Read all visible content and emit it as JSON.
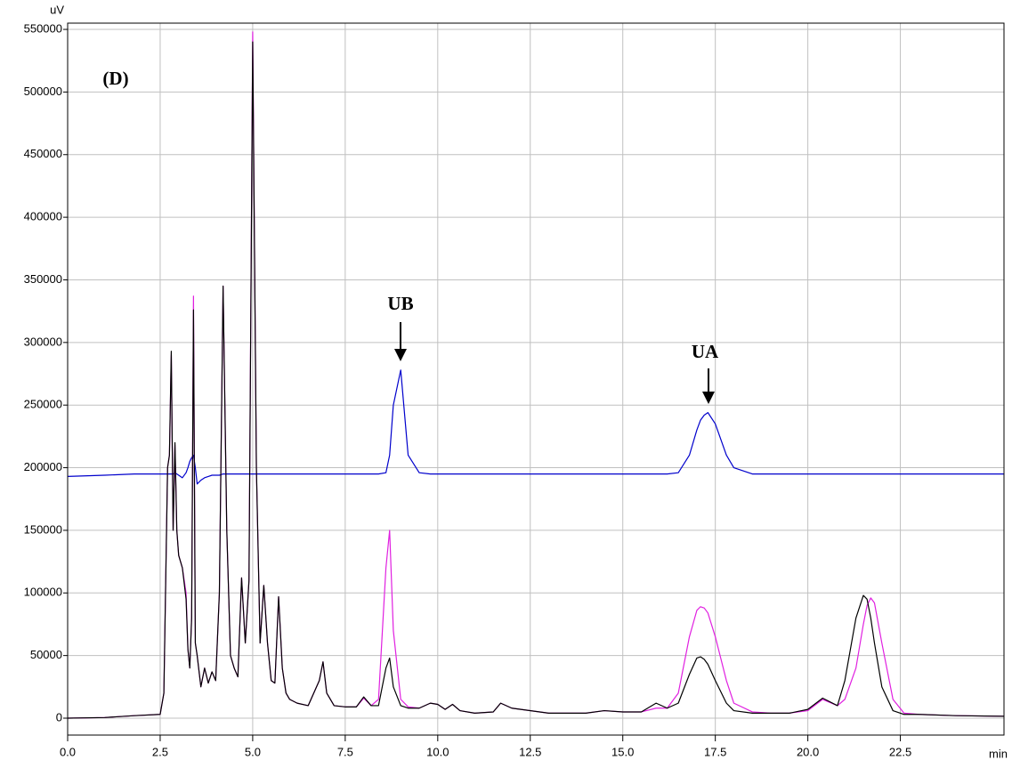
{
  "chart_data": {
    "type": "line",
    "y_label": "uV",
    "x_label": "min",
    "annotations": [
      "(D)",
      "UB",
      "UA"
    ],
    "xlim": [
      0,
      25.3
    ],
    "ylim": [
      -13500,
      555000
    ],
    "xticks": [
      {
        "value": 0,
        "label": "0.0"
      },
      2.5,
      {
        "value": 5,
        "label": "5.0"
      },
      7.5,
      {
        "value": 10,
        "label": "10.0"
      },
      12.5,
      {
        "value": 15,
        "label": "15.0"
      },
      17.5,
      {
        "value": 20,
        "label": "20.0"
      },
      22.5
    ],
    "yticks": [
      0,
      50000,
      100000,
      150000,
      200000,
      250000,
      300000,
      350000,
      400000,
      450000,
      500000,
      550000
    ],
    "grid": true,
    "x": [
      0,
      1,
      1.8,
      2.5,
      2.6,
      2.7,
      2.75,
      2.8,
      2.85,
      2.9,
      2.95,
      3.0,
      3.1,
      3.2,
      3.25,
      3.3,
      3.35,
      3.4,
      3.45,
      3.5,
      3.6,
      3.7,
      3.8,
      3.9,
      4.0,
      4.1,
      4.2,
      4.3,
      4.4,
      4.5,
      4.6,
      4.7,
      4.8,
      4.9,
      5.0,
      5.1,
      5.2,
      5.3,
      5.4,
      5.5,
      5.6,
      5.7,
      5.8,
      5.9,
      6.0,
      6.2,
      6.5,
      6.8,
      6.9,
      7.0,
      7.2,
      7.5,
      7.8,
      8.0,
      8.2,
      8.4,
      8.6,
      8.7,
      8.8,
      9.0,
      9.2,
      9.5,
      9.8,
      10.0,
      10.2,
      10.4,
      10.6,
      11.0,
      11.5,
      11.7,
      12.0,
      13.0,
      14.0,
      14.5,
      15.0,
      15.5,
      15.9,
      16.2,
      16.5,
      16.8,
      17.0,
      17.1,
      17.2,
      17.3,
      17.5,
      17.8,
      18.0,
      18.5,
      19.0,
      19.5,
      20.0,
      20.4,
      20.8,
      21.0,
      21.3,
      21.5,
      21.6,
      21.7,
      21.8,
      22.0,
      22.3,
      22.6,
      23.0,
      24.0,
      25.3
    ],
    "series": [
      {
        "color": "#0000cc",
        "values": [
          193000,
          194000,
          195000,
          195000,
          195000,
          195000,
          195000,
          195000,
          195000,
          196000,
          195000,
          194000,
          192000,
          196000,
          200000,
          205000,
          208000,
          210000,
          200000,
          187000,
          190000,
          192000,
          193000,
          194000,
          194000,
          194000,
          195000,
          195000,
          195000,
          195000,
          195000,
          195000,
          195000,
          195000,
          195000,
          195000,
          195000,
          195000,
          195000,
          195000,
          195000,
          195000,
          195000,
          195000,
          195000,
          195000,
          195000,
          195000,
          195000,
          195000,
          195000,
          195000,
          195000,
          195000,
          195000,
          195000,
          196000,
          210000,
          250000,
          278000,
          210000,
          196000,
          195000,
          195000,
          195000,
          195000,
          195000,
          195000,
          195000,
          195000,
          195000,
          195000,
          195000,
          195000,
          195000,
          195000,
          195000,
          195000,
          196000,
          210000,
          230000,
          238000,
          242000,
          244000,
          235000,
          210000,
          200000,
          195000,
          195000,
          195000,
          195000,
          195000,
          195000,
          195000,
          195000,
          195000,
          195000,
          195000,
          195000,
          195000,
          195000,
          195000,
          195000,
          195000,
          195000
        ]
      },
      {
        "color": "#e020e0",
        "values": [
          0,
          500,
          2000,
          3000,
          20000,
          200000,
          210000,
          290000,
          150000,
          218000,
          150000,
          130000,
          120000,
          100000,
          55000,
          40000,
          80000,
          337000,
          60000,
          50000,
          25000,
          40000,
          28000,
          37000,
          30000,
          100000,
          345000,
          150000,
          50000,
          40000,
          33000,
          112000,
          60000,
          110000,
          548000,
          200000,
          60000,
          106000,
          60000,
          30000,
          28000,
          97000,
          40000,
          20000,
          15000,
          12000,
          10000,
          30000,
          45000,
          20000,
          10000,
          9000,
          9000,
          16000,
          10000,
          15000,
          120000,
          150000,
          70000,
          15000,
          9000,
          8000,
          12000,
          11000,
          7000,
          11000,
          6000,
          4000,
          5000,
          12000,
          8000,
          4000,
          4000,
          6000,
          5000,
          5000,
          8000,
          8000,
          20000,
          65000,
          86000,
          89000,
          88000,
          84000,
          65000,
          30000,
          12000,
          5000,
          4000,
          4000,
          6000,
          15000,
          10000,
          15000,
          40000,
          75000,
          90000,
          96000,
          92000,
          60000,
          15000,
          4000,
          3000,
          2000,
          1500
        ]
      },
      {
        "color": "#000000",
        "values": [
          0,
          500,
          2000,
          3000,
          20000,
          200000,
          210000,
          293000,
          150000,
          220000,
          150000,
          130000,
          120000,
          95000,
          55000,
          40000,
          80000,
          326000,
          60000,
          50000,
          25000,
          40000,
          28000,
          37000,
          30000,
          100000,
          345000,
          150000,
          50000,
          40000,
          33000,
          112000,
          60000,
          110000,
          540000,
          200000,
          60000,
          106000,
          60000,
          30000,
          28000,
          97000,
          40000,
          20000,
          15000,
          12000,
          10000,
          30000,
          45000,
          20000,
          10000,
          9000,
          9000,
          17000,
          10000,
          10000,
          40000,
          48000,
          25000,
          10000,
          8000,
          8000,
          12000,
          11000,
          7000,
          11000,
          6000,
          4000,
          5000,
          12000,
          8000,
          4000,
          4000,
          6000,
          5000,
          5000,
          12000,
          8000,
          12000,
          35000,
          48000,
          49000,
          47000,
          43000,
          30000,
          12000,
          6000,
          4000,
          4000,
          4000,
          7000,
          16000,
          10000,
          30000,
          80000,
          98000,
          95000,
          80000,
          60000,
          25000,
          6000,
          3000,
          3000,
          2000,
          1500
        ]
      }
    ]
  }
}
